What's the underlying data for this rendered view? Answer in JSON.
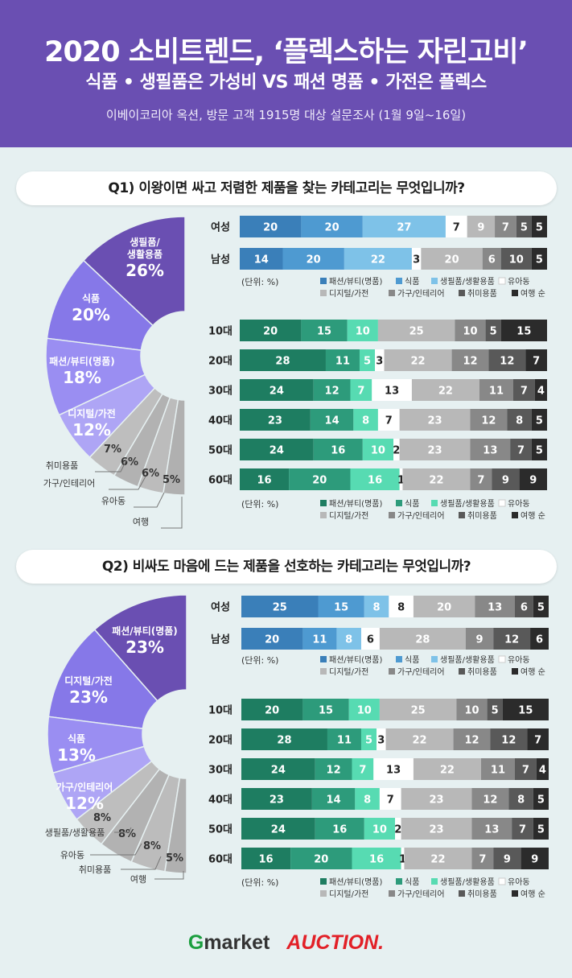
{
  "header": {
    "title": "2020 소비트렌드, ‘플렉스하는 자린고비’",
    "subtitle": "식품 • 생필품은 가성비 VS 패션 명품 • 가전은 플렉스",
    "source": "이베이코리아 옥션, 방문 고객 1915명 대상 설문조사 (1월 9일~16일)"
  },
  "q1": {
    "question": "Q1) 이왕이면 싸고 저렴한 제품을 찾는 카테고리는 무엇입니까?"
  },
  "q2": {
    "question": "Q2) 비싸도 마음에 드는 제품을 선호하는 카테고리는 무엇입니까?"
  },
  "footer": {
    "g": "G",
    "market": "market",
    "auction": "AUCTION."
  },
  "colors": {
    "purple": "#6a4fb2",
    "gender": [
      "#3a7fb9",
      "#4e9ad1",
      "#7ec2e8",
      "#ffffff",
      "#b8b8b8",
      "#888888",
      "#595959",
      "#2b2b2b"
    ],
    "age": [
      "#1e7d61",
      "#2d9b7b",
      "#57dbb2",
      "#ffffff",
      "#b8b8b8",
      "#888888",
      "#595959",
      "#2b2b2b"
    ]
  },
  "chart_data": [
    {
      "id": "q1-pie",
      "type": "pie",
      "title": "Q1) 이왕이면 싸고 저렴한 제품을 찾는 카테고리는 무엇입니까?",
      "slices": [
        {
          "label": "생필품/\n생활용품",
          "value": 26,
          "pct": "26%",
          "color": "#6a4fb2"
        },
        {
          "label": "식품",
          "value": 20,
          "pct": "20%",
          "color": "#8678e8"
        },
        {
          "label": "패션/뷰티(명품)",
          "value": 18,
          "pct": "18%",
          "color": "#9a8ef2"
        },
        {
          "label": "디지털/가전",
          "value": 12,
          "pct": "12%",
          "color": "#aea5f5"
        },
        {
          "label": "취미용품",
          "value": 7,
          "pct": "7%",
          "color": "#bebebe"
        },
        {
          "label": "가구/인테리어",
          "value": 6,
          "pct": "6%",
          "color": "#b2b2b2"
        },
        {
          "label": "유아동",
          "value": 6,
          "pct": "6%",
          "color": "#bcbcbc"
        },
        {
          "label": "여행",
          "value": 5,
          "pct": "5%",
          "color": "#b0b0b0"
        }
      ]
    },
    {
      "id": "q1-gender",
      "type": "bar",
      "stacked": true,
      "categories": [
        "여성",
        "남성"
      ],
      "legend": [
        "패션/뷰티(명품)",
        "식품",
        "생필품/생활용품",
        "유아동",
        "디지털/가전",
        "가구/인테리어",
        "취미용품",
        "여행 순"
      ],
      "unit": "(단위: %)",
      "rows": [
        [
          20,
          20,
          27,
          7,
          9,
          7,
          5,
          5
        ],
        [
          14,
          20,
          22,
          3,
          20,
          6,
          10,
          5
        ]
      ]
    },
    {
      "id": "q1-age",
      "type": "bar",
      "stacked": true,
      "categories": [
        "10대",
        "20대",
        "30대",
        "40대",
        "50대",
        "60대"
      ],
      "legend": [
        "패션/뷰티(명품)",
        "식품",
        "생필품/생활용품",
        "유아동",
        "디지털/가전",
        "가구/인테리어",
        "취미용품",
        "여행 순"
      ],
      "unit": "(단위: %)",
      "rows": [
        [
          20,
          15,
          10,
          0,
          25,
          10,
          5,
          15
        ],
        [
          28,
          11,
          5,
          3,
          22,
          12,
          12,
          7
        ],
        [
          24,
          12,
          7,
          13,
          22,
          11,
          7,
          4
        ],
        [
          23,
          14,
          8,
          7,
          23,
          12,
          8,
          5
        ],
        [
          24,
          16,
          10,
          2,
          23,
          13,
          7,
          5
        ],
        [
          16,
          20,
          16,
          1,
          22,
          7,
          9,
          9
        ]
      ]
    },
    {
      "id": "q2-pie",
      "type": "pie",
      "title": "Q2) 비싸도 마음에 드는 제품을 선호하는 카테고리는 무엇입니까?",
      "slices": [
        {
          "label": "패션/뷰티(명품)",
          "value": 23,
          "pct": "23%",
          "color": "#6a4fb2"
        },
        {
          "label": "디지털/가전",
          "value": 23,
          "pct": "23%",
          "color": "#8678e8"
        },
        {
          "label": "식품",
          "value": 13,
          "pct": "13%",
          "color": "#9a8ef2"
        },
        {
          "label": "가구/인테리어",
          "value": 12,
          "pct": "12%",
          "color": "#aea5f5"
        },
        {
          "label": "생필품/생활용품",
          "value": 8,
          "pct": "8%",
          "color": "#bebebe"
        },
        {
          "label": "유아동",
          "value": 8,
          "pct": "8%",
          "color": "#b2b2b2"
        },
        {
          "label": "취미용품",
          "value": 8,
          "pct": "8%",
          "color": "#bcbcbc"
        },
        {
          "label": "여행",
          "value": 5,
          "pct": "5%",
          "color": "#b0b0b0"
        }
      ]
    },
    {
      "id": "q2-gender",
      "type": "bar",
      "stacked": true,
      "categories": [
        "여성",
        "남성"
      ],
      "legend": [
        "패션/뷰티(명품)",
        "식품",
        "생필품/생활용품",
        "유아동",
        "디지털/가전",
        "가구/인테리어",
        "취미용품",
        "여행 순"
      ],
      "unit": "(단위: %)",
      "rows": [
        [
          25,
          15,
          8,
          8,
          20,
          13,
          6,
          5
        ],
        [
          20,
          11,
          8,
          6,
          28,
          9,
          12,
          6
        ]
      ]
    },
    {
      "id": "q2-age",
      "type": "bar",
      "stacked": true,
      "categories": [
        "10대",
        "20대",
        "30대",
        "40대",
        "50대",
        "60대"
      ],
      "legend": [
        "패션/뷰티(명품)",
        "식품",
        "생필품/생활용품",
        "유아동",
        "디지털/가전",
        "가구/인테리어",
        "취미용품",
        "여행 순"
      ],
      "unit": "(단위: %)",
      "rows": [
        [
          20,
          15,
          10,
          0,
          25,
          10,
          5,
          15
        ],
        [
          28,
          11,
          5,
          3,
          22,
          12,
          12,
          7
        ],
        [
          24,
          12,
          7,
          13,
          22,
          11,
          7,
          4
        ],
        [
          23,
          14,
          8,
          7,
          23,
          12,
          8,
          5
        ],
        [
          24,
          16,
          10,
          2,
          23,
          13,
          7,
          5
        ],
        [
          16,
          20,
          16,
          1,
          22,
          7,
          9,
          9
        ]
      ]
    }
  ]
}
